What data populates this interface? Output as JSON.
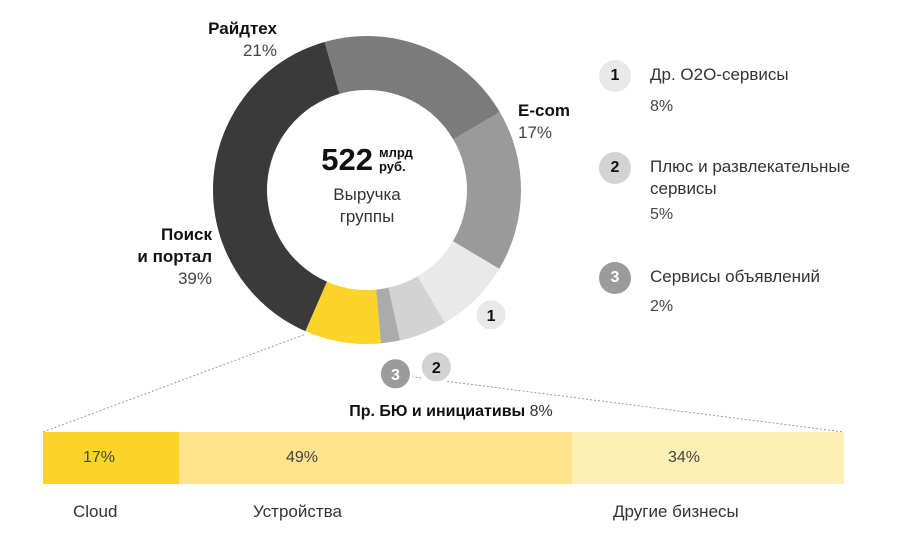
{
  "chart_data": [
    {
      "type": "pie",
      "title": "",
      "center": {
        "value": "522",
        "unit_line1": "млрд",
        "unit_line2": "руб.",
        "caption_line1": "Выручка",
        "caption_line2": "группы"
      },
      "segments": [
        {
          "name": "Райдтех",
          "value": 21,
          "label": "21%",
          "color": "#7b7b7b"
        },
        {
          "name": "E-com",
          "value": 17,
          "label": "17%",
          "color": "#9a9a9a"
        },
        {
          "name": "Др. О2О-сервисы",
          "value": 8,
          "label": "8%",
          "color": "#e9e9e9",
          "marker": "1"
        },
        {
          "name": "Плюс и развлекательные сервисы",
          "value": 5,
          "label": "5%",
          "color": "#d3d3d3",
          "marker": "2"
        },
        {
          "name": "Сервисы объявлений",
          "value": 2,
          "label": "2%",
          "color": "#ababab",
          "marker": "3"
        },
        {
          "name": "Пр. БЮ и инициативы",
          "value": 8,
          "label": "8%",
          "color": "#fcd429"
        },
        {
          "name": "Поиск и портал",
          "value": 39,
          "label": "39%",
          "color": "#3a3a3a"
        }
      ]
    },
    {
      "type": "bar",
      "title": "Пр. БЮ и инициативы",
      "title_value": "8%",
      "stacked": true,
      "categories": [
        "Cloud",
        "Устройства",
        "Другие бизнесы"
      ],
      "values": [
        17,
        49,
        34
      ],
      "labels": [
        "17%",
        "49%",
        "34%"
      ],
      "colors": [
        "#fcd429",
        "#fde48a",
        "#feefb7"
      ]
    }
  ],
  "donut_labels": {
    "ridetech": {
      "name": "Райдтех",
      "pct": "21%"
    },
    "ecom": {
      "name": "E-com",
      "pct": "17%"
    },
    "search": {
      "name_line1": "Поиск",
      "name_line2": "и портал",
      "pct": "39%"
    }
  },
  "legend": [
    {
      "number": "1",
      "name": "Др. О2О-сервисы",
      "pct": "8%",
      "circle_color": "#e9e9e9",
      "text_color": "#111111"
    },
    {
      "number": "2",
      "name": "Плюс и развлекательные сервисы",
      "pct": "5%",
      "circle_color": "#d3d3d3",
      "text_color": "#111111"
    },
    {
      "number": "3",
      "name": "Сервисы объявлений",
      "pct": "2%",
      "circle_color": "#9b9b9b",
      "text_color": "#ffffff"
    }
  ],
  "bar_section": {
    "title": "Пр. БЮ и инициативы",
    "title_value": "8%"
  }
}
